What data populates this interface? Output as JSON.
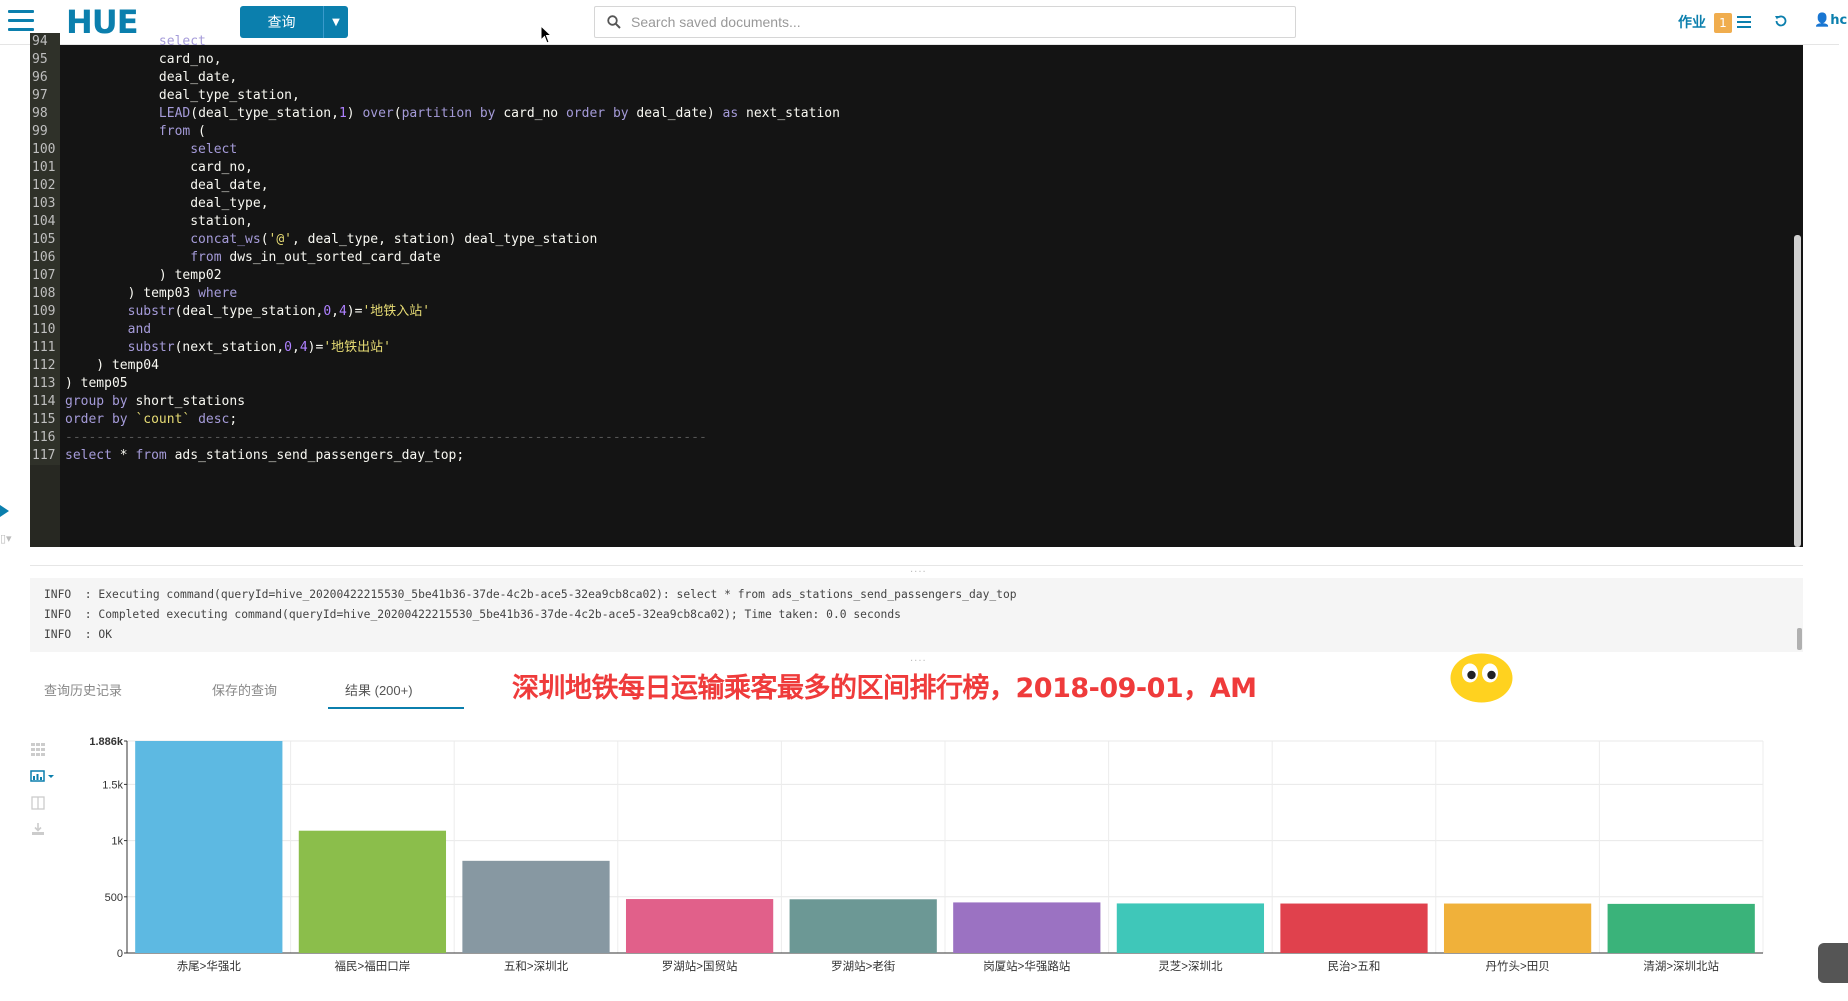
{
  "topbar": {
    "logo": "HUE",
    "query_button": "查询",
    "search_placeholder": "Search saved documents...",
    "jobs_label": "作业",
    "jobs_count": "1",
    "user": "hc"
  },
  "editor": {
    "line_numbers": [
      "94",
      "95",
      "96",
      "97",
      "98",
      "99",
      "100",
      "101",
      "102",
      "103",
      "104",
      "105",
      "106",
      "107",
      "108",
      "109",
      "110",
      "111",
      "112",
      "113",
      "114",
      "115",
      "116",
      "117"
    ],
    "lines": [
      "            select",
      "            card_no,",
      "            deal_date,",
      "            deal_type_station,",
      "            LEAD(deal_type_station,1) over(partition by card_no order by deal_date) as next_station",
      "            from (",
      "                select",
      "                card_no,",
      "                deal_date,",
      "                deal_type,",
      "                station,",
      "                concat_ws('@', deal_type, station) deal_type_station",
      "                from dws_in_out_sorted_card_date",
      "            ) temp02",
      "        ) temp03 where",
      "        substr(deal_type_station,0,4)='地铁入站'",
      "        and",
      "        substr(next_station,0,4)='地铁出站'",
      "    ) temp04",
      ") temp05",
      "group by short_stations",
      "order by `count` desc;",
      "----------------------------------------------------------------------------------",
      "select * from ads_stations_send_passengers_day_top;"
    ]
  },
  "log": [
    "INFO  : Executing command(queryId=hive_20200422215530_5be41b36-37de-4c2b-ace5-32ea9cb8ca02): select * from ads_stations_send_passengers_day_top",
    "INFO  : Completed executing command(queryId=hive_20200422215530_5be41b36-37de-4c2b-ace5-32ea9cb8ca02); Time taken: 0.0 seconds",
    "INFO  : OK"
  ],
  "tabs": {
    "history": "查询历史记录",
    "saved": "保存的查询",
    "results": "结果 (200+)"
  },
  "caption": "深圳地铁每日运输乘客最多的区间排行榜，2018-09-01，AM",
  "chart_data": {
    "type": "bar",
    "categories": [
      "赤尾>华强北",
      "福民>福田口岸",
      "五和>深圳北",
      "罗湖站>国贸站",
      "罗湖站>老街",
      "岗厦站>华强路站",
      "灵芝>深圳北",
      "民治>五和",
      "丹竹头>田贝",
      "清湖>深圳北站"
    ],
    "values": [
      1886,
      1088,
      820,
      480,
      478,
      450,
      441,
      440,
      440,
      437
    ],
    "colors": [
      "#5DB9E2",
      "#8BBE4B",
      "#8798A2",
      "#E1608A",
      "#6C9895",
      "#9B72C2",
      "#3FC7B9",
      "#E0414D",
      "#F0B13A",
      "#3AB37A"
    ],
    "yticks": [
      {
        "value": 0,
        "label": "0"
      },
      {
        "value": 500,
        "label": "500"
      },
      {
        "value": 1000,
        "label": "1k"
      },
      {
        "value": 1500,
        "label": "1.5k"
      },
      {
        "value": 1886,
        "label": "1.886k"
      }
    ],
    "ylim": [
      0,
      1886
    ],
    "grid": true,
    "title": "",
    "xlabel": "",
    "ylabel": ""
  }
}
